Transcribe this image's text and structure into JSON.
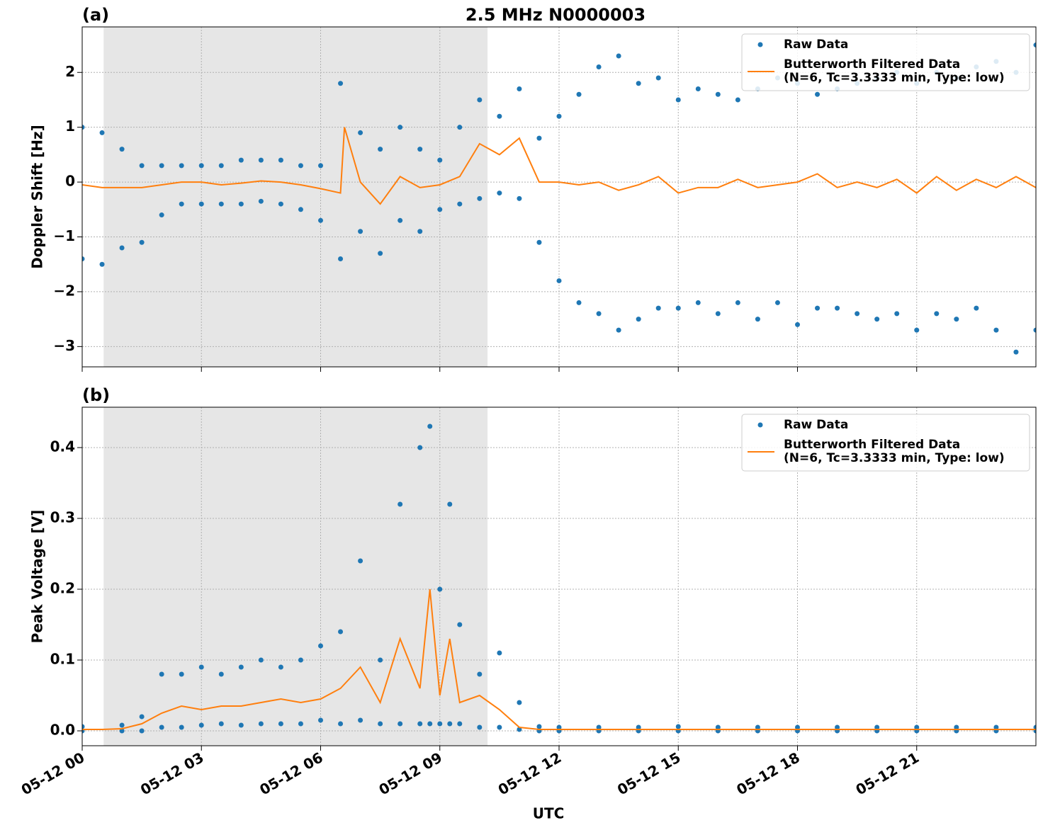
{
  "chart_data": [
    {
      "type": "scatter",
      "panel_label": "(a)",
      "title": "2.5 MHz N0000003",
      "ylabel": "Doppler Shift [Hz]",
      "xlim": [
        0,
        24
      ],
      "xticks": [
        0,
        3,
        6,
        9,
        12,
        15,
        18,
        21
      ],
      "ylim": [
        -3.37,
        2.83
      ],
      "yticks": [
        {
          "value": -3,
          "label": "−3"
        },
        {
          "value": -2,
          "label": "−2"
        },
        {
          "value": -1,
          "label": "−1"
        },
        0,
        1,
        2
      ],
      "grid": true,
      "legend": "upper right",
      "shaded_span": [
        0.54,
        10.2
      ],
      "shade_color": "#e6e6e6",
      "series": [
        {
          "name": "Raw Data",
          "type": "scatter",
          "color": "#1f77b4",
          "x": [
            0,
            0,
            0.5,
            0.5,
            1,
            1,
            1.5,
            1.5,
            2,
            2,
            2.5,
            2.5,
            3,
            3,
            3.5,
            3.5,
            4,
            4,
            4.5,
            4.5,
            5,
            5,
            5.5,
            5.5,
            6,
            6,
            6.5,
            6.5,
            7,
            7,
            7.5,
            7.5,
            8,
            8,
            8.5,
            8.5,
            9,
            9,
            9.5,
            9.5,
            10,
            10,
            10.5,
            10.5,
            11,
            11,
            11.5,
            11.5,
            12,
            12,
            12.5,
            12.5,
            13,
            13,
            13.5,
            13.5,
            14,
            14,
            14.5,
            14.5,
            15,
            15,
            15.5,
            15.5,
            16,
            16,
            16.5,
            16.5,
            17,
            17,
            17.5,
            17.5,
            18,
            18,
            18.5,
            18.5,
            19,
            19,
            19.5,
            19.5,
            20,
            20,
            20.5,
            20.5,
            21,
            21,
            21.5,
            21.5,
            22,
            22,
            22.5,
            22.5,
            23,
            23,
            23.5,
            23.5,
            24,
            24
          ],
          "values": [
            1.0,
            -1.4,
            0.9,
            -1.5,
            0.6,
            -1.2,
            0.3,
            -1.1,
            0.3,
            -0.6,
            0.3,
            -0.4,
            0.3,
            -0.4,
            0.3,
            -0.4,
            0.4,
            -0.4,
            0.4,
            -0.35,
            0.4,
            -0.4,
            0.3,
            -0.5,
            0.3,
            -0.7,
            1.8,
            -1.4,
            0.9,
            -0.9,
            0.6,
            -1.3,
            1.0,
            -0.7,
            0.6,
            -0.9,
            0.4,
            -0.5,
            1.0,
            -0.4,
            1.5,
            -0.3,
            1.2,
            -0.2,
            1.7,
            -0.3,
            0.8,
            -1.1,
            1.2,
            -1.8,
            1.6,
            -2.2,
            2.1,
            -2.4,
            2.3,
            -2.7,
            1.8,
            -2.5,
            1.9,
            -2.3,
            1.5,
            -2.3,
            1.7,
            -2.2,
            1.6,
            -2.4,
            1.5,
            -2.2,
            1.7,
            -2.5,
            1.9,
            -2.2,
            1.8,
            -2.6,
            1.6,
            -2.3,
            1.7,
            -2.3,
            1.8,
            -2.4,
            1.9,
            -2.5,
            2.0,
            -2.4,
            1.8,
            -2.7,
            2.0,
            -2.4,
            1.9,
            -2.5,
            2.1,
            -2.3,
            2.2,
            -2.7,
            2.0,
            -3.1,
            2.5,
            -2.7
          ]
        },
        {
          "name": "Butterworth Filtered Data\n(N=6, Tc=3.3333 min, Type: low)",
          "type": "line",
          "color": "#ff7f0e",
          "x": [
            0,
            0.5,
            1,
            1.5,
            2,
            2.5,
            3,
            3.5,
            4,
            4.5,
            5,
            5.5,
            6,
            6.5,
            6.6,
            7,
            7.5,
            8,
            8.5,
            9,
            9.5,
            10,
            10.5,
            11,
            11.5,
            12,
            12.5,
            13,
            13.5,
            14,
            14.5,
            15,
            15.5,
            16,
            16.5,
            17,
            17.5,
            18,
            18.5,
            19,
            19.5,
            20,
            20.5,
            21,
            21.5,
            22,
            22.5,
            23,
            23.5,
            24
          ],
          "values": [
            -0.05,
            -0.1,
            -0.1,
            -0.1,
            -0.05,
            0.0,
            0.0,
            -0.05,
            -0.02,
            0.02,
            0.0,
            -0.05,
            -0.12,
            -0.2,
            1.0,
            0.0,
            -0.4,
            0.1,
            -0.1,
            -0.05,
            0.1,
            0.7,
            0.5,
            0.8,
            0.0,
            0.0,
            -0.05,
            0.0,
            -0.15,
            -0.05,
            0.1,
            -0.2,
            -0.1,
            -0.1,
            0.05,
            -0.1,
            -0.05,
            0.0,
            0.15,
            -0.1,
            0.0,
            -0.1,
            0.05,
            -0.2,
            0.1,
            -0.15,
            0.05,
            -0.1,
            0.1,
            -0.1
          ]
        }
      ]
    },
    {
      "type": "scatter",
      "panel_label": "(b)",
      "ylabel": "Peak Voltage [V]",
      "xlabel": "UTC",
      "xlim": [
        0,
        24
      ],
      "xticks": [
        {
          "value": 0,
          "label": "05-12 00"
        },
        {
          "value": 3,
          "label": "05-12 03"
        },
        {
          "value": 6,
          "label": "05-12 06"
        },
        {
          "value": 9,
          "label": "05-12 09"
        },
        {
          "value": 12,
          "label": "05-12 12"
        },
        {
          "value": 15,
          "label": "05-12 15"
        },
        {
          "value": 18,
          "label": "05-12 18"
        },
        {
          "value": 21,
          "label": "05-12 21"
        }
      ],
      "ylim": [
        -0.021,
        0.457
      ],
      "yticks": [
        {
          "value": 0,
          "label": "0.0"
        },
        0.1,
        0.2,
        0.3,
        0.4
      ],
      "grid": true,
      "legend": "upper right",
      "shaded_span": [
        0.54,
        10.2
      ],
      "shade_color": "#e6e6e6",
      "series": [
        {
          "name": "Raw Data",
          "type": "scatter",
          "color": "#1f77b4",
          "x": [
            0,
            0,
            1,
            1,
            1.5,
            1.5,
            2,
            2,
            2.5,
            2.5,
            3,
            3,
            3.5,
            3.5,
            4,
            4,
            4.5,
            4.5,
            5,
            5,
            5.5,
            5.5,
            6,
            6,
            6.5,
            6.5,
            7,
            7,
            7.5,
            7.5,
            8,
            8,
            8.5,
            8.5,
            8.75,
            8.75,
            9,
            9,
            9.25,
            9.25,
            9.5,
            9.5,
            10,
            10,
            10.5,
            10.5,
            11,
            11,
            11.5,
            11.5,
            12,
            12,
            13,
            13,
            14,
            14,
            15,
            15,
            16,
            16,
            17,
            17,
            18,
            18,
            19,
            19,
            20,
            20,
            21,
            21,
            22,
            22,
            23,
            23,
            24,
            24
          ],
          "values": [
            0.006,
            0,
            0.008,
            0,
            0.02,
            0,
            0.08,
            0.005,
            0.08,
            0.005,
            0.09,
            0.008,
            0.08,
            0.01,
            0.09,
            0.008,
            0.1,
            0.01,
            0.09,
            0.01,
            0.1,
            0.01,
            0.12,
            0.015,
            0.14,
            0.01,
            0.24,
            0.015,
            0.1,
            0.01,
            0.32,
            0.01,
            0.4,
            0.01,
            0.43,
            0.01,
            0.2,
            0.01,
            0.32,
            0.01,
            0.15,
            0.01,
            0.08,
            0.005,
            0.11,
            0.005,
            0.04,
            0.002,
            0.006,
            0,
            0.005,
            0,
            0.005,
            0,
            0.005,
            0,
            0.006,
            0,
            0.005,
            0,
            0.005,
            0,
            0.005,
            0,
            0.005,
            0,
            0.005,
            0,
            0.005,
            0,
            0.005,
            0,
            0.005,
            0,
            0.005,
            0
          ]
        },
        {
          "name": "Butterworth Filtered Data\n(N=6, Tc=3.3333 min, Type: low)",
          "type": "line",
          "color": "#ff7f0e",
          "x": [
            0,
            0.5,
            1,
            1.5,
            2,
            2.5,
            3,
            3.5,
            4,
            4.5,
            5,
            5.5,
            6,
            6.5,
            7,
            7.5,
            8,
            8.5,
            8.75,
            9,
            9.25,
            9.5,
            10,
            10.5,
            11,
            11.5,
            12,
            13,
            14,
            15,
            16,
            17,
            18,
            19,
            20,
            21,
            22,
            23,
            24
          ],
          "values": [
            0.002,
            0.002,
            0.003,
            0.01,
            0.025,
            0.035,
            0.03,
            0.035,
            0.035,
            0.04,
            0.045,
            0.04,
            0.045,
            0.06,
            0.09,
            0.04,
            0.13,
            0.06,
            0.2,
            0.05,
            0.13,
            0.04,
            0.05,
            0.03,
            0.005,
            0.002,
            0.002,
            0.002,
            0.002,
            0.002,
            0.002,
            0.002,
            0.002,
            0.002,
            0.002,
            0.002,
            0.002,
            0.002,
            0.002
          ]
        }
      ]
    }
  ]
}
